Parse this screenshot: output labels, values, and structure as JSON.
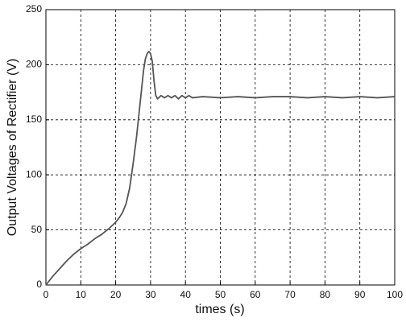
{
  "chart_data": {
    "type": "line",
    "xlabel": "times (s)",
    "ylabel": "Output Voltages of Rectifier (V)",
    "x": [
      0,
      2,
      4,
      6,
      8,
      10,
      12,
      14,
      16,
      18,
      20,
      21,
      22,
      23,
      24,
      25,
      26,
      27,
      28,
      28.5,
      29,
      29.5,
      30,
      30.5,
      31,
      31.5,
      32,
      33,
      34,
      35,
      36,
      37,
      38,
      39,
      40,
      41,
      42,
      45,
      50,
      55,
      60,
      65,
      70,
      75,
      80,
      85,
      90,
      95,
      100
    ],
    "values": [
      0,
      8,
      15,
      22,
      28,
      33,
      37,
      42,
      46,
      51,
      57,
      61,
      66,
      74,
      88,
      110,
      135,
      165,
      195,
      205,
      210,
      212,
      210,
      203,
      185,
      172,
      169,
      172,
      170,
      172,
      170,
      172,
      169,
      172,
      170,
      172,
      170,
      171,
      170,
      171,
      170,
      171,
      171,
      170,
      171,
      170,
      171,
      170,
      171
    ],
    "color": "#555555",
    "xlim": [
      0,
      100
    ],
    "xticks": [
      0,
      10,
      20,
      30,
      40,
      50,
      60,
      70,
      80,
      90,
      100
    ],
    "ylim": [
      0,
      250
    ],
    "yticks": [
      0,
      50,
      100,
      150,
      200,
      250
    ],
    "grid": true
  }
}
